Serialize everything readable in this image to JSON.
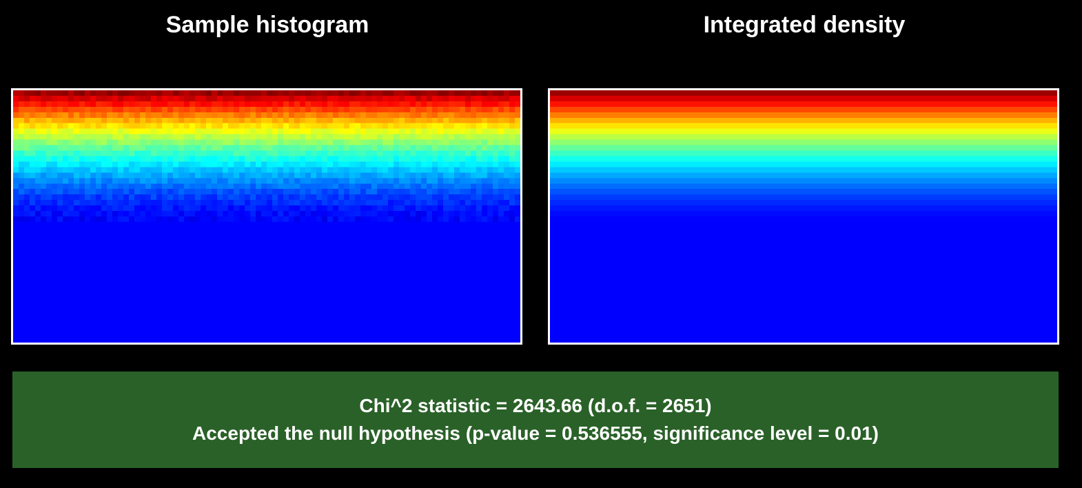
{
  "chart_data": [
    {
      "type": "heatmap",
      "title": "Sample histogram",
      "colormap": "jet",
      "noise": true,
      "grid": false,
      "legend": "none",
      "value_profile": "normalized intensity decreasing from top (1.0) to bottom (0.0); lower half at minimum",
      "profile_top": 1.0,
      "profile_zero_fraction": 0.48,
      "profile_exponent": 1.6
    },
    {
      "type": "heatmap",
      "title": "Integrated density",
      "colormap": "jet",
      "noise": false,
      "grid": false,
      "legend": "none",
      "value_profile": "smooth normalized intensity decreasing from top (1.0) to bottom (0.0); lower half at minimum",
      "profile_top": 1.0,
      "profile_zero_fraction": 0.48,
      "profile_exponent": 1.6
    }
  ],
  "result": {
    "line1": "Chi^2 statistic = 2643.66 (d.o.f. = 2651)",
    "line2": "Accepted the null hypothesis (p-value = 0.536555, significance level = 0.01)",
    "background_color": "#2a6128"
  },
  "colors": {
    "background": "#000000",
    "border": "#ffffff",
    "text": "#ffffff"
  }
}
